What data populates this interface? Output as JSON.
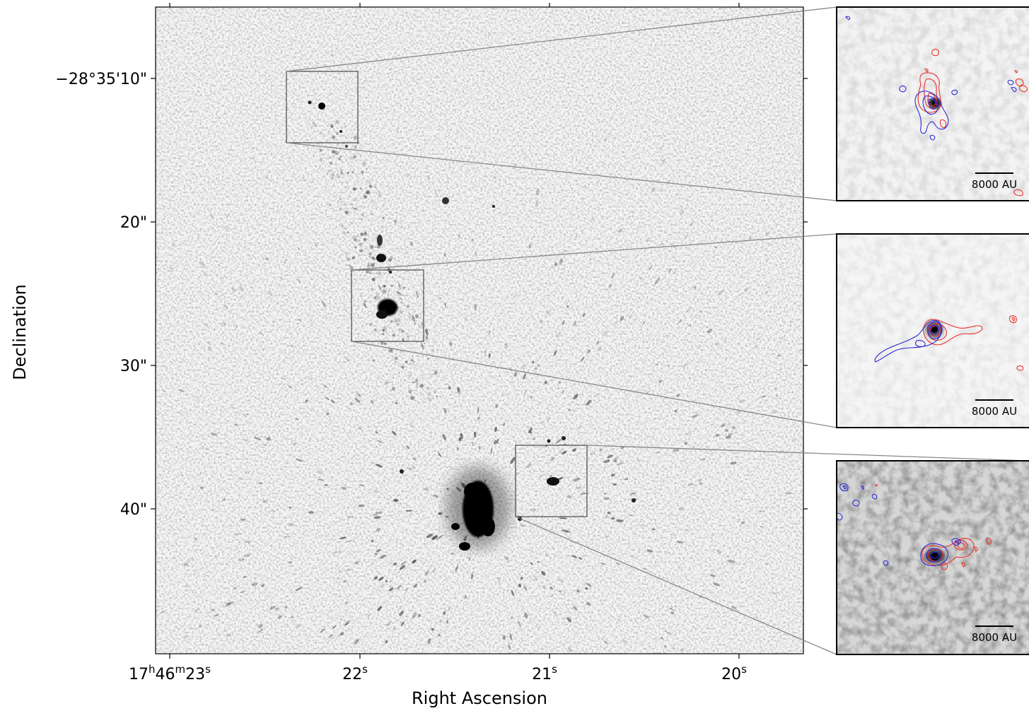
{
  "axes": {
    "xlabel": "Right Ascension",
    "ylabel": "Declination",
    "x_ticks": [
      {
        "label": "17h46m23s",
        "html": "17<tspan baseline-shift='super' font-size='15'>h</tspan>46<tspan baseline-shift='super' font-size='15'>m</tspan>23<tspan baseline-shift='super' font-size='15'>s</tspan>"
      },
      {
        "label": "22s"
      },
      {
        "label": "21s"
      },
      {
        "label": "20s"
      }
    ],
    "y_ticks": [
      {
        "label": "−28°35'10\""
      },
      {
        "label": "20\""
      },
      {
        "label": "30\""
      },
      {
        "label": "40\""
      }
    ]
  },
  "insets": [
    {
      "name": "inset-top",
      "scale_bar": "8000 AU"
    },
    {
      "name": "inset-middle",
      "scale_bar": "8000 AU"
    },
    {
      "name": "inset-bottom",
      "scale_bar": "8000 AU"
    }
  ],
  "colors": {
    "redshifted_contour": "#e8302a",
    "blueshifted_contour": "#2a2ad8",
    "zoom_lines": "#7a7a7a",
    "source": "#000000"
  }
}
